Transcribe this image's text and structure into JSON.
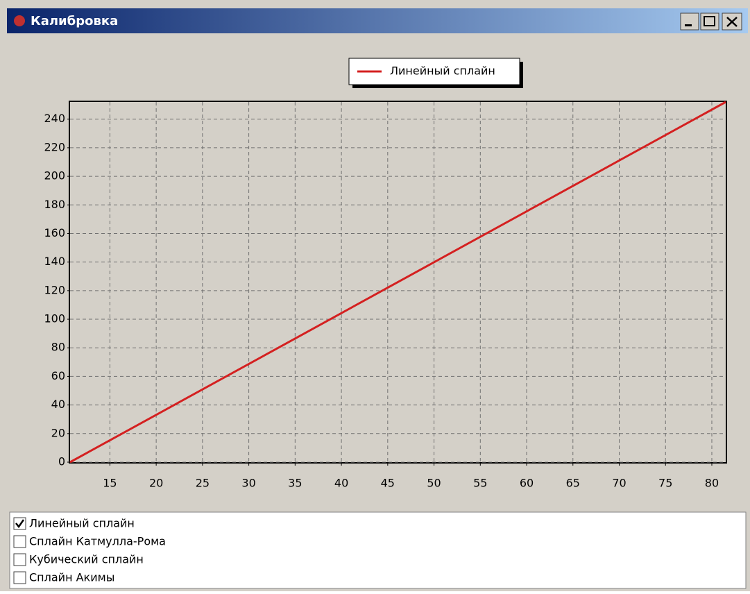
{
  "window": {
    "title": "Калибровка"
  },
  "chart_data": {
    "type": "line",
    "x": [
      10.7,
      81.5
    ],
    "series": [
      {
        "name": "Линейный сплайн",
        "color": "#d42020",
        "values": [
          0,
          252
        ]
      }
    ],
    "xlim": [
      10.7,
      81.5
    ],
    "xticks": [
      15,
      20,
      25,
      30,
      35,
      40,
      45,
      50,
      55,
      60,
      65,
      70,
      75,
      80
    ],
    "ylim": [
      0,
      252
    ],
    "yticks": [
      0,
      20,
      40,
      60,
      80,
      100,
      120,
      140,
      160,
      180,
      200,
      220,
      240
    ],
    "grid": true
  },
  "checklist": {
    "items": [
      {
        "label": "Линейный сплайн",
        "checked": true
      },
      {
        "label": "Сплайн Катмулла-Рома",
        "checked": false
      },
      {
        "label": "Кубический сплайн",
        "checked": false
      },
      {
        "label": "Сплайн Акимы",
        "checked": false
      }
    ]
  }
}
